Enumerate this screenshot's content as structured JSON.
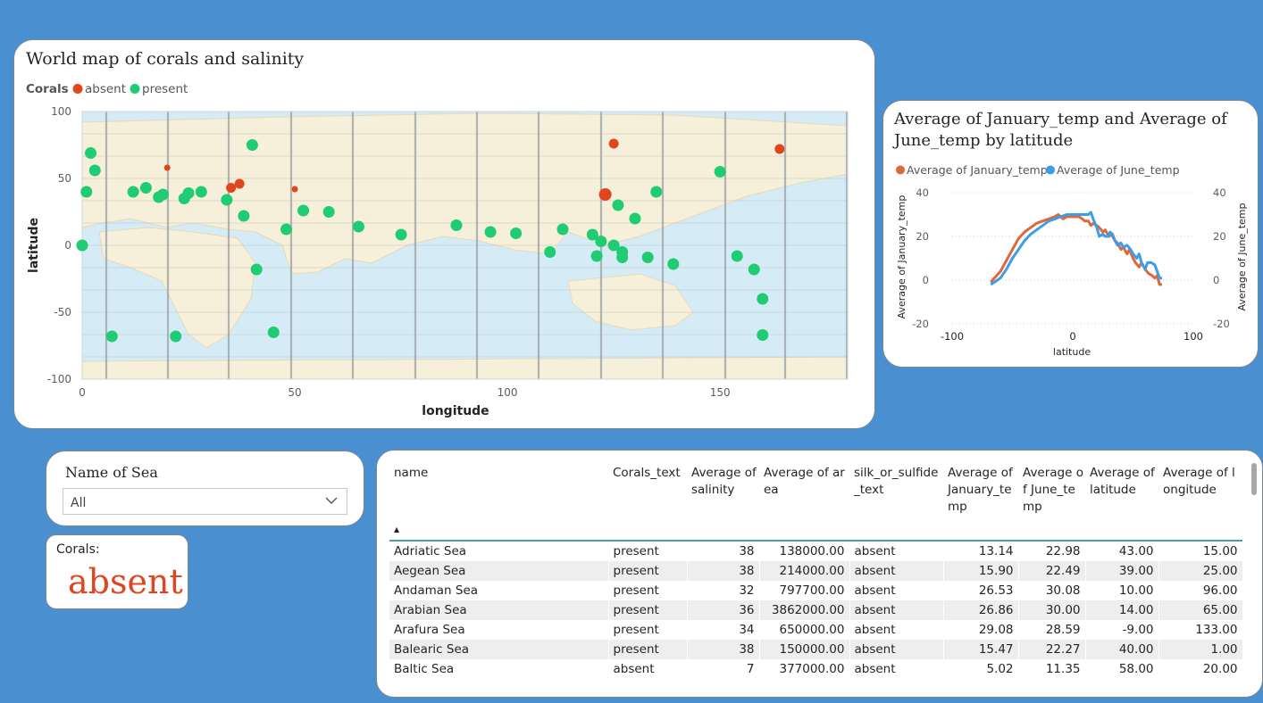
{
  "map": {
    "title": "World map of corals and salinity",
    "legend": {
      "title": "Corals",
      "items": [
        {
          "label": "absent",
          "color": "#e0461e"
        },
        {
          "label": "present",
          "color": "#1fcc73"
        }
      ]
    },
    "xlabel": "longitude",
    "ylabel": "latitude"
  },
  "line": {
    "title": "Average of January_temp and Average of June_temp by latitude",
    "legend": [
      {
        "label": "Average of January_temp",
        "color": "#e0663b"
      },
      {
        "label": "Average of June_temp",
        "color": "#3d9ee8"
      }
    ],
    "xlabel": "latitude",
    "ylabel_left": "Average of January_temp",
    "ylabel_right": "Average of June_temp"
  },
  "slicer": {
    "title": "Name of Sea",
    "value": "All"
  },
  "kpi": {
    "label": "Corals:",
    "value": "absent"
  },
  "table": {
    "columns": [
      "name",
      "Corals_text",
      "Average of salinity",
      "Average of area",
      "silk_or_sulfide_text",
      "Average of January_temp",
      "Average of June_temp",
      "Average of latitude",
      "Average of longitude"
    ],
    "rows": [
      [
        "Adriatic Sea",
        "present",
        "38",
        "138000.00",
        "absent",
        "13.14",
        "22.98",
        "43.00",
        "15.00"
      ],
      [
        "Aegean Sea",
        "present",
        "38",
        "214000.00",
        "absent",
        "15.90",
        "22.49",
        "39.00",
        "25.00"
      ],
      [
        "Andaman Sea",
        "present",
        "32",
        "797700.00",
        "absent",
        "26.53",
        "30.08",
        "10.00",
        "96.00"
      ],
      [
        "Arabian Sea",
        "present",
        "36",
        "3862000.00",
        "absent",
        "26.86",
        "30.00",
        "14.00",
        "65.00"
      ],
      [
        "Arafura Sea",
        "present",
        "34",
        "650000.00",
        "absent",
        "29.08",
        "28.59",
        "-9.00",
        "133.00"
      ],
      [
        "Balearic Sea",
        "present",
        "38",
        "150000.00",
        "absent",
        "15.47",
        "22.27",
        "40.00",
        "1.00"
      ],
      [
        "Baltic Sea",
        "absent",
        "7",
        "377000.00",
        "absent",
        "5.02",
        "11.35",
        "58.00",
        "20.00"
      ]
    ]
  },
  "chart_data": [
    {
      "type": "scatter",
      "title": "World map of corals and salinity",
      "xlabel": "longitude",
      "ylabel": "latitude",
      "xlim": [
        0,
        180
      ],
      "ylim": [
        -100,
        100
      ],
      "xticks": [
        0,
        50,
        100,
        150
      ],
      "yticks": [
        100,
        50,
        0,
        -50,
        -100
      ],
      "legend_position": "top-left",
      "series": [
        {
          "name": "absent",
          "color": "#e0461e",
          "points": [
            [
              20,
              58,
              "s"
            ],
            [
              35,
              43,
              "m"
            ],
            [
              37,
              46,
              "m"
            ],
            [
              50,
              42,
              "s"
            ],
            [
              125,
              76,
              "m"
            ],
            [
              123,
              38,
              "l"
            ],
            [
              164,
              72,
              "m"
            ]
          ]
        },
        {
          "name": "present",
          "color": "#1fcc73",
          "points": [
            [
              0,
              0
            ],
            [
              1,
              40
            ],
            [
              2,
              69
            ],
            [
              3,
              56
            ],
            [
              12,
              40
            ],
            [
              15,
              43
            ],
            [
              18,
              36
            ],
            [
              19,
              38
            ],
            [
              24,
              35
            ],
            [
              25,
              39
            ],
            [
              28,
              40
            ],
            [
              34,
              34
            ],
            [
              38,
              22
            ],
            [
              40,
              75
            ],
            [
              41,
              -18
            ],
            [
              48,
              12
            ],
            [
              52,
              26
            ],
            [
              58,
              25
            ],
            [
              65,
              14
            ],
            [
              75,
              8
            ],
            [
              88,
              15
            ],
            [
              96,
              10
            ],
            [
              102,
              9
            ],
            [
              110,
              -5
            ],
            [
              113,
              12
            ],
            [
              120,
              8
            ],
            [
              121,
              -8
            ],
            [
              122,
              3
            ],
            [
              125,
              0
            ],
            [
              126,
              30
            ],
            [
              127,
              -5
            ],
            [
              127,
              -9
            ],
            [
              130,
              20
            ],
            [
              133,
              -9
            ],
            [
              135,
              40
            ],
            [
              139,
              -14
            ],
            [
              150,
              55
            ],
            [
              154,
              -8
            ],
            [
              158,
              -18
            ],
            [
              160,
              -40
            ],
            [
              160,
              -67
            ],
            [
              7,
              -68
            ],
            [
              22,
              -68
            ],
            [
              45,
              -65
            ]
          ]
        }
      ]
    },
    {
      "type": "line",
      "title": "Average of January_temp and Average of June_temp by latitude",
      "xlabel": "latitude",
      "ylabel": "Average of January_temp",
      "y2label": "Average of June_temp",
      "xlim": [
        -100,
        100
      ],
      "ylim": [
        -20,
        40
      ],
      "xticks": [
        -100,
        0,
        100
      ],
      "yticks": [
        40,
        20,
        0,
        -20
      ],
      "legend_position": "top",
      "series": [
        {
          "name": "Average of January_temp",
          "color": "#e0663b",
          "points": [
            [
              -68,
              -1
            ],
            [
              -65,
              1
            ],
            [
              -60,
              4
            ],
            [
              -55,
              9
            ],
            [
              -50,
              14
            ],
            [
              -45,
              19
            ],
            [
              -40,
              22
            ],
            [
              -35,
              24
            ],
            [
              -30,
              26
            ],
            [
              -25,
              27
            ],
            [
              -20,
              28
            ],
            [
              -15,
              29
            ],
            [
              -12,
              30
            ],
            [
              -8,
              28
            ],
            [
              -5,
              29
            ],
            [
              0,
              29
            ],
            [
              5,
              29
            ],
            [
              8,
              28
            ],
            [
              10,
              27
            ],
            [
              13,
              27
            ],
            [
              15,
              25
            ],
            [
              17,
              26
            ],
            [
              20,
              25
            ],
            [
              22,
              24
            ],
            [
              25,
              22
            ],
            [
              27,
              23
            ],
            [
              30,
              20
            ],
            [
              32,
              21
            ],
            [
              35,
              18
            ],
            [
              37,
              17
            ],
            [
              40,
              14
            ],
            [
              42,
              15
            ],
            [
              45,
              12
            ],
            [
              47,
              14
            ],
            [
              50,
              10
            ],
            [
              52,
              8
            ],
            [
              55,
              6
            ],
            [
              57,
              8
            ],
            [
              60,
              5
            ],
            [
              63,
              3
            ],
            [
              66,
              2
            ],
            [
              68,
              1
            ],
            [
              70,
              2
            ],
            [
              72,
              -2
            ],
            [
              74,
              -2
            ]
          ]
        },
        {
          "name": "Average of June_temp",
          "color": "#3d9ee8",
          "points": [
            [
              -68,
              -2
            ],
            [
              -65,
              -1
            ],
            [
              -60,
              1
            ],
            [
              -55,
              5
            ],
            [
              -50,
              10
            ],
            [
              -45,
              14
            ],
            [
              -40,
              18
            ],
            [
              -35,
              21
            ],
            [
              -30,
              23
            ],
            [
              -25,
              25
            ],
            [
              -20,
              27
            ],
            [
              -15,
              28
            ],
            [
              -10,
              29
            ],
            [
              -5,
              30
            ],
            [
              0,
              30
            ],
            [
              5,
              30
            ],
            [
              10,
              30
            ],
            [
              13,
              30
            ],
            [
              15,
              31
            ],
            [
              17,
              28
            ],
            [
              20,
              24
            ],
            [
              22,
              20
            ],
            [
              25,
              21
            ],
            [
              27,
              20
            ],
            [
              29,
              20
            ],
            [
              31,
              22
            ],
            [
              33,
              21
            ],
            [
              35,
              18
            ],
            [
              37,
              16
            ],
            [
              40,
              17
            ],
            [
              42,
              15
            ],
            [
              45,
              16
            ],
            [
              48,
              14
            ],
            [
              50,
              12
            ],
            [
              53,
              10
            ],
            [
              55,
              12
            ],
            [
              57,
              8
            ],
            [
              60,
              5
            ],
            [
              62,
              8
            ],
            [
              65,
              8
            ],
            [
              68,
              7
            ],
            [
              70,
              4
            ],
            [
              72,
              1
            ],
            [
              74,
              1
            ]
          ]
        }
      ]
    }
  ]
}
